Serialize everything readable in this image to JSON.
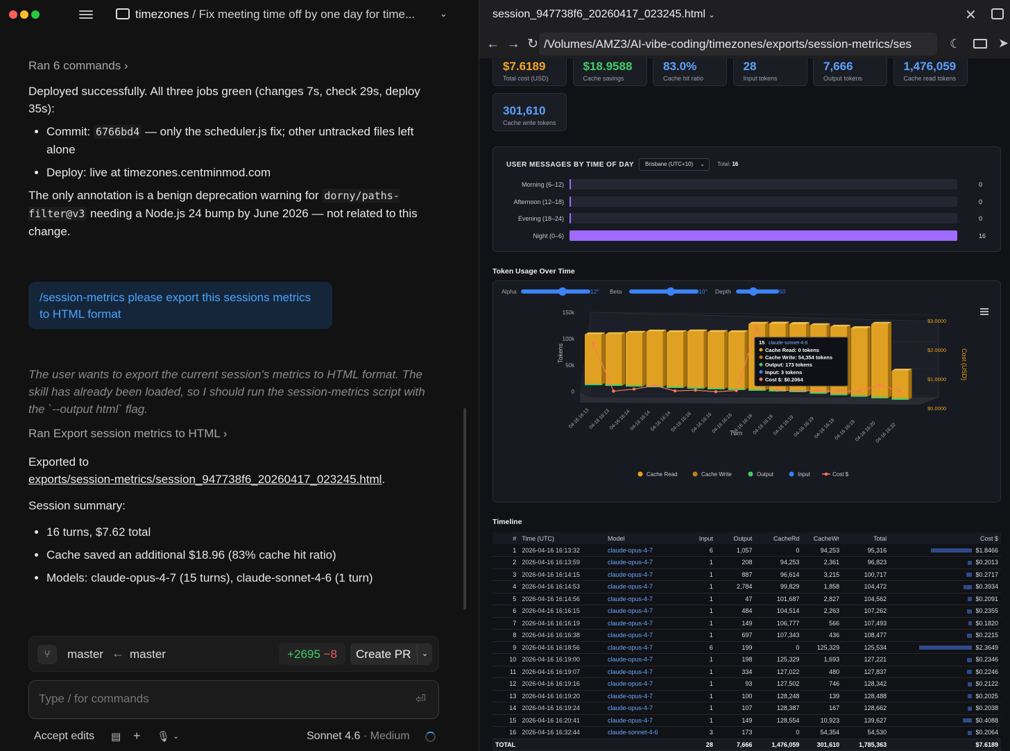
{
  "left": {
    "breadcrumb_repo": "timezones",
    "breadcrumb_sep": " / ",
    "breadcrumb_task": "Fix meeting time off by one day for time...",
    "ran_commands": "Ran 6 commands",
    "deploy_text": "Deployed successfully. All three jobs green (changes 7s, check 29s, deploy 35s):",
    "bullet1_pre": "Commit: ",
    "bullet1_code": "6766bd4",
    "bullet1_post": " — only the scheduler.js fix; other untracked files left alone",
    "bullet2": "Deploy: live at timezones.centminmod.com",
    "annotation_pre": "The only annotation is a benign deprecation warning for ",
    "annotation_code": "dorny/paths-filter@v3",
    "annotation_post": " needing a Node.js 24 bump by June 2026 — not related to this change.",
    "user_message": "/session-metrics please export this sessions metrics to HTML format",
    "thought": "The user wants to export the current session's metrics to HTML format. The skill has already been loaded, so I should run the session-metrics script with the `--output html` flag.",
    "ran_export": "Ran Export session metrics to HTML",
    "exported_to": "Exported to",
    "export_path": "exports/session-metrics/session_947738f6_20260417_023245.html",
    "summary_title": "Session summary:",
    "summary": [
      "16 turns, $7.62 total",
      "Cache saved an additional $18.96 (83% cache hit ratio)",
      "Models: claude-opus-4-7 (15 turns), claude-sonnet-4-6 (1 turn)"
    ],
    "branch_from": "master",
    "branch_to": "master",
    "diff_plus": "+2695",
    "diff_minus": "−8",
    "create_pr": "Create PR",
    "input_placeholder": "Type / for commands",
    "accept_edits": "Accept edits",
    "model_name": "Sonnet 4.6",
    "model_level": "· Medium"
  },
  "right": {
    "tab_title": "session_947738f6_20260417_023245.html",
    "url": "/Volumes/AMZ3/AI-vibe-coding/timezones/exports/session-metrics/ses",
    "cards": [
      {
        "value": "$7.6189",
        "label": "Total cost (USD)",
        "color": "#f5a623"
      },
      {
        "value": "$18.9588",
        "label": "Cache savings",
        "color": "#3fcf6a"
      },
      {
        "value": "83.0%",
        "label": "Cache hit ratio",
        "color": "#5aa2ff"
      },
      {
        "value": "28",
        "label": "Input tokens",
        "color": "#5aa2ff"
      },
      {
        "value": "7,666",
        "label": "Output tokens",
        "color": "#5aa2ff"
      },
      {
        "value": "1,476,059",
        "label": "Cache read tokens",
        "color": "#5aa2ff"
      },
      {
        "value": "301,610",
        "label": "Cache write tokens",
        "color": "#5aa2ff"
      }
    ],
    "tod": {
      "title": "USER MESSAGES BY TIME OF DAY",
      "timezone": "Brisbane (UTC+10)",
      "total_label": "Total:",
      "total": "16",
      "rows": [
        {
          "label": "Morning (6–12)",
          "count": 0
        },
        {
          "label": "Afternoon (12–18)",
          "count": 0
        },
        {
          "label": "Evening (18–24)",
          "count": 0
        },
        {
          "label": "Night (0–6)",
          "count": 16
        }
      ]
    },
    "token_title": "Token Usage Over Time",
    "sliders": [
      {
        "label": "Alpha",
        "value": "12°",
        "level": 0.6
      },
      {
        "label": "Beta",
        "value": "10°",
        "level": 0.6
      },
      {
        "label": "Depth",
        "value": "50",
        "level": 0.4
      }
    ],
    "timeline_title": "Timeline"
  },
  "chart_data": {
    "type": "bar",
    "xlabel": "Turn",
    "ylabel": "Tokens",
    "y2label": "Cost (USD)",
    "ylim": [
      0,
      150000
    ],
    "y2lim": [
      0,
      3.0
    ],
    "yticks": [
      "150k",
      "100k",
      "50k",
      "0"
    ],
    "y2ticks": [
      "$3.0000",
      "$2.0000",
      "$1.0000",
      "$0.0000"
    ],
    "categories": [
      "04-16 16:13",
      "04-16 16:13",
      "04-16 16:14",
      "04-16 16:14",
      "04-16 16:14",
      "04-16 16:16",
      "04-16 16:16",
      "04-16 16:16",
      "04-16 16:18",
      "04-16 16:19",
      "04-16 16:19",
      "04-16 16:19",
      "04-16 16:19",
      "04-16 16:19",
      "04-16 16:20",
      "04-16 16:32"
    ],
    "series": [
      {
        "name": "Cache Read",
        "color": "#e8a317",
        "values": [
          0,
          94253,
          96614,
          99829,
          101687,
          104514,
          106777,
          107343,
          0,
          125329,
          127022,
          127502,
          128248,
          128387,
          128554,
          0
        ]
      },
      {
        "name": "Cache Write",
        "color": "#b8860b",
        "values": [
          94253,
          2361,
          3215,
          1858,
          2827,
          2263,
          566,
          436,
          125329,
          1693,
          480,
          746,
          139,
          167,
          10923,
          54354
        ]
      },
      {
        "name": "Output",
        "color": "#3fcf6a",
        "values": [
          1057,
          208,
          887,
          2784,
          47,
          484,
          149,
          697,
          199,
          198,
          334,
          93,
          100,
          107,
          149,
          173
        ]
      },
      {
        "name": "Input",
        "color": "#3b82f6",
        "values": [
          6,
          1,
          1,
          1,
          1,
          1,
          1,
          1,
          6,
          1,
          1,
          1,
          1,
          1,
          1,
          3
        ]
      },
      {
        "name": "Cost $",
        "color": "#ff7a59",
        "values": [
          1.8466,
          0.2013,
          0.2717,
          0.3934,
          0.2091,
          0.2355,
          0.182,
          0.2215,
          2.3649,
          0.2346,
          0.2246,
          0.2122,
          0.2025,
          0.2038,
          0.4088,
          0.2064
        ]
      }
    ],
    "tooltip": {
      "turn": "15",
      "model": "claude-sonnet-4-6",
      "lines": [
        "Cache Read: 0 tokens",
        "Cache Write: 54,354 tokens",
        "Output: 173 tokens",
        "Input: 3 tokens",
        "Cost $: $0.2064"
      ]
    }
  },
  "timeline": {
    "headers": [
      "#",
      "Time (UTC)",
      "Model",
      "Input",
      "Output",
      "CacheRd",
      "CacheWr",
      "Total",
      "Cost $"
    ],
    "rows": [
      [
        "1",
        "2026-04-16 16:13:32",
        "claude-opus-4-7",
        "6",
        "1,057",
        "0",
        "94,253",
        "95,316",
        "$1.8466"
      ],
      [
        "2",
        "2026-04-16 16:13:59",
        "claude-opus-4-7",
        "1",
        "208",
        "94,253",
        "2,361",
        "96,823",
        "$0.2013"
      ],
      [
        "3",
        "2026-04-16 16:14:15",
        "claude-opus-4-7",
        "1",
        "887",
        "96,614",
        "3,215",
        "100,717",
        "$0.2717"
      ],
      [
        "4",
        "2026-04-16 16:14:53",
        "claude-opus-4-7",
        "1",
        "2,784",
        "99,829",
        "1,858",
        "104,472",
        "$0.3934"
      ],
      [
        "5",
        "2026-04-16 16:14:56",
        "claude-opus-4-7",
        "1",
        "47",
        "101,687",
        "2,827",
        "104,562",
        "$0.2091"
      ],
      [
        "6",
        "2026-04-16 16:16:15",
        "claude-opus-4-7",
        "1",
        "484",
        "104,514",
        "2,263",
        "107,262",
        "$0.2355"
      ],
      [
        "7",
        "2026-04-16 16:16:19",
        "claude-opus-4-7",
        "1",
        "149",
        "106,777",
        "566",
        "107,493",
        "$0.1820"
      ],
      [
        "8",
        "2026-04-16 16:16:38",
        "claude-opus-4-7",
        "1",
        "697",
        "107,343",
        "436",
        "108,477",
        "$0.2215"
      ],
      [
        "9",
        "2026-04-16 16:18:56",
        "claude-opus-4-7",
        "6",
        "199",
        "0",
        "125,329",
        "125,534",
        "$2.3649"
      ],
      [
        "10",
        "2026-04-16 16:19:00",
        "claude-opus-4-7",
        "1",
        "198",
        "125,329",
        "1,693",
        "127,221",
        "$0.2346"
      ],
      [
        "11",
        "2026-04-16 16:19:07",
        "claude-opus-4-7",
        "1",
        "334",
        "127,022",
        "480",
        "127,837",
        "$0.2246"
      ],
      [
        "12",
        "2026-04-16 16:19:16",
        "claude-opus-4-7",
        "1",
        "93",
        "127,502",
        "746",
        "128,342",
        "$0.2122"
      ],
      [
        "13",
        "2026-04-16 16:19:20",
        "claude-opus-4-7",
        "1",
        "100",
        "128,248",
        "139",
        "128,488",
        "$0.2025"
      ],
      [
        "14",
        "2026-04-16 16:19:24",
        "claude-opus-4-7",
        "1",
        "107",
        "128,387",
        "167",
        "128,662",
        "$0.2038"
      ],
      [
        "15",
        "2026-04-16 16:20:41",
        "claude-opus-4-7",
        "1",
        "149",
        "128,554",
        "10,923",
        "139,627",
        "$0.4088"
      ],
      [
        "16",
        "2026-04-16 16:32:44",
        "claude-sonnet-4-6",
        "3",
        "173",
        "0",
        "54,354",
        "54,530",
        "$0.2064"
      ]
    ],
    "total": [
      "TOTAL",
      "",
      "",
      "28",
      "7,666",
      "1,476,059",
      "301,610",
      "1,785,363",
      "$7.6189"
    ]
  }
}
